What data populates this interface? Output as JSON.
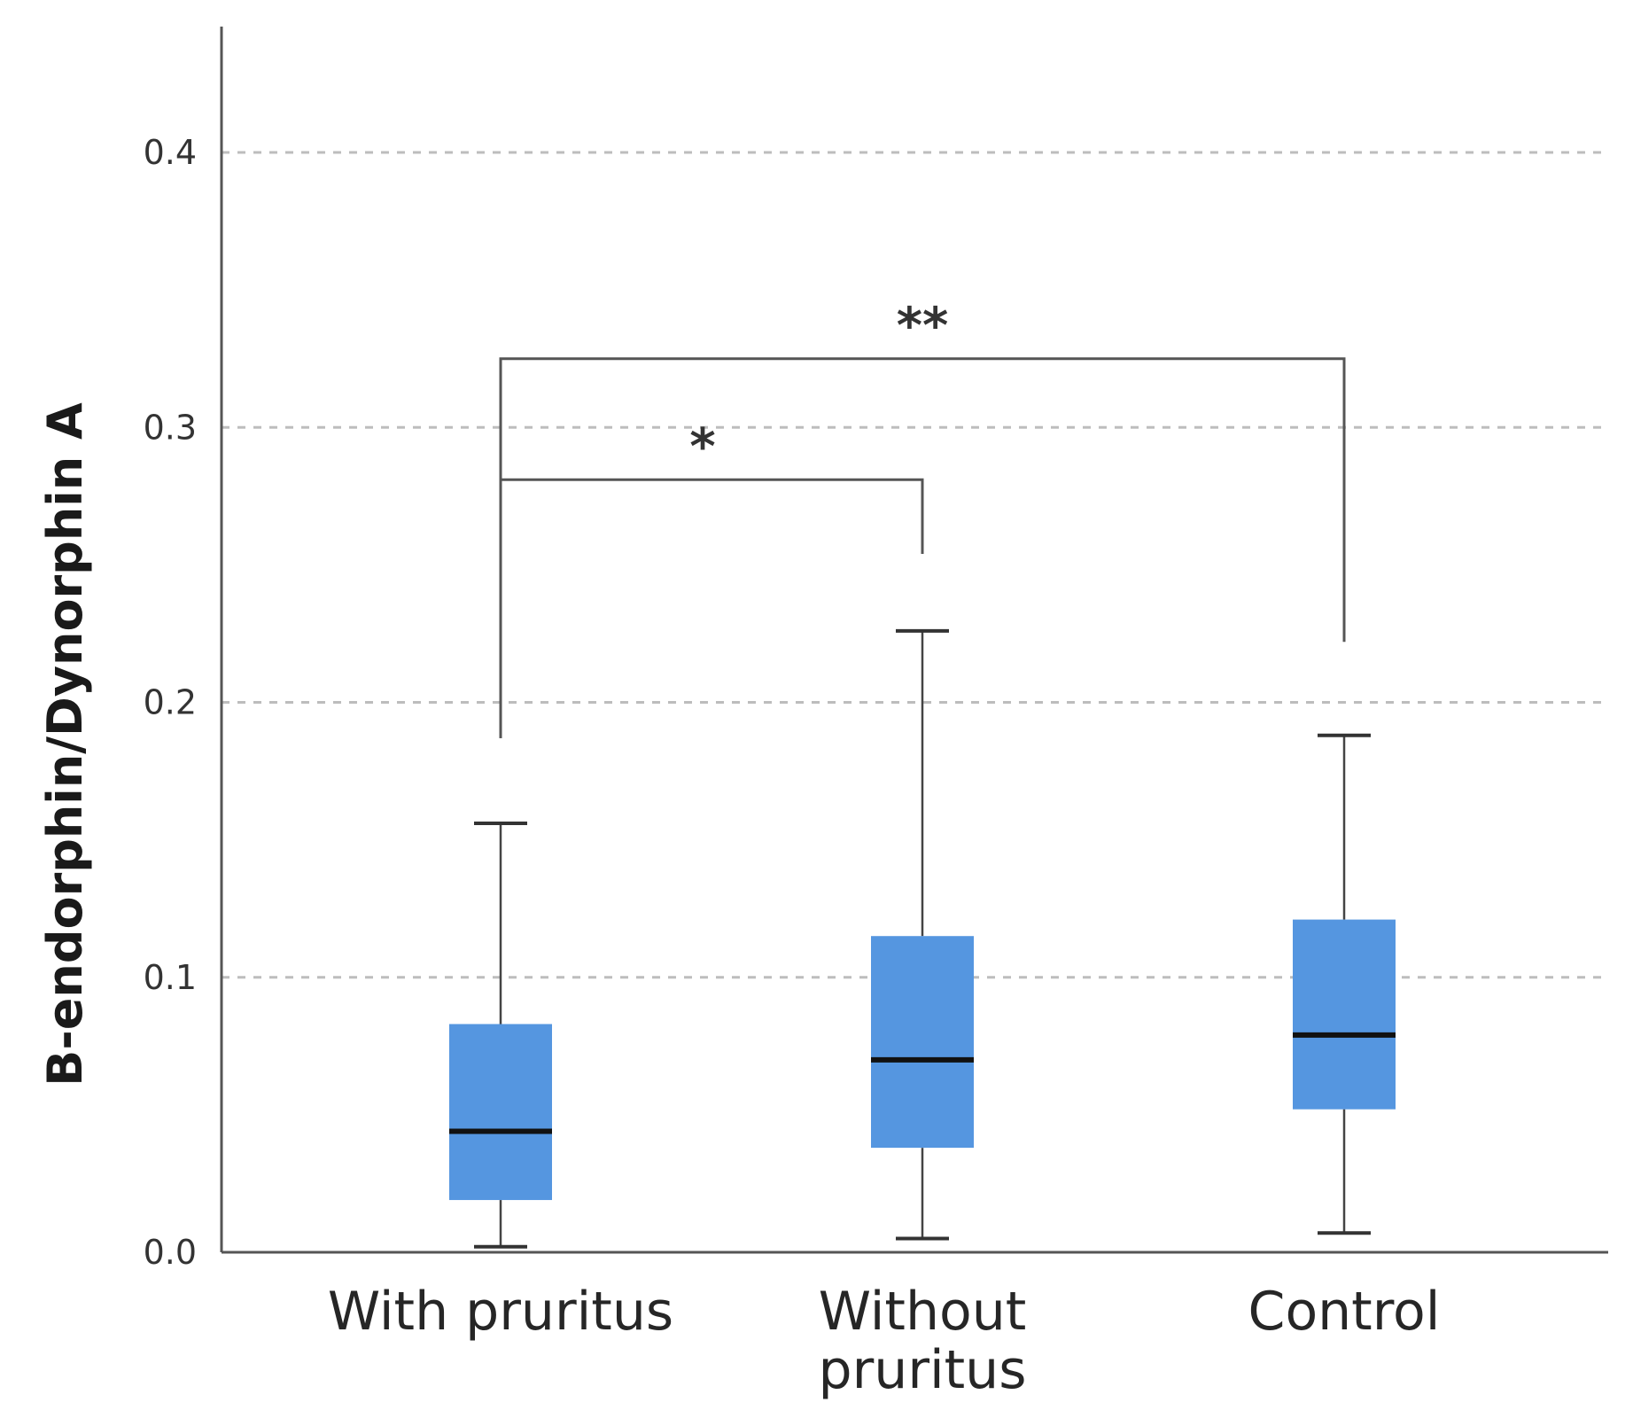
{
  "chart_data": {
    "type": "boxplot",
    "title": "",
    "xlabel": "",
    "ylabel": "B-endorphin/Dynorphin A",
    "ylim": [
      0.0,
      0.445
    ],
    "yticks": [
      "0.0",
      "0.1",
      "0.2",
      "0.3",
      "0.4"
    ],
    "ytick_values": [
      0.0,
      0.1,
      0.2,
      0.3,
      0.4
    ],
    "grid": "horizontal dashed",
    "box_color": "#5596e0",
    "categories": [
      {
        "label_lines": [
          "With pruritus"
        ],
        "min": 0.002,
        "q1": 0.019,
        "median": 0.044,
        "q3": 0.083,
        "max": 0.156
      },
      {
        "label_lines": [
          "Without",
          "pruritus"
        ],
        "min": 0.005,
        "q1": 0.038,
        "median": 0.07,
        "q3": 0.115,
        "max": 0.226
      },
      {
        "label_lines": [
          "Control"
        ],
        "min": 0.007,
        "q1": 0.052,
        "median": 0.079,
        "q3": 0.121,
        "max": 0.188
      }
    ],
    "significance": [
      {
        "from": 0,
        "to": 1,
        "label": "*",
        "bar_y": 0.281,
        "left_leg_end": 0.187,
        "right_leg_end": 0.254
      },
      {
        "from": 0,
        "to": 2,
        "label": "**",
        "bar_y": 0.325,
        "left_leg_end": 0.187,
        "right_leg_end": 0.222
      }
    ]
  }
}
